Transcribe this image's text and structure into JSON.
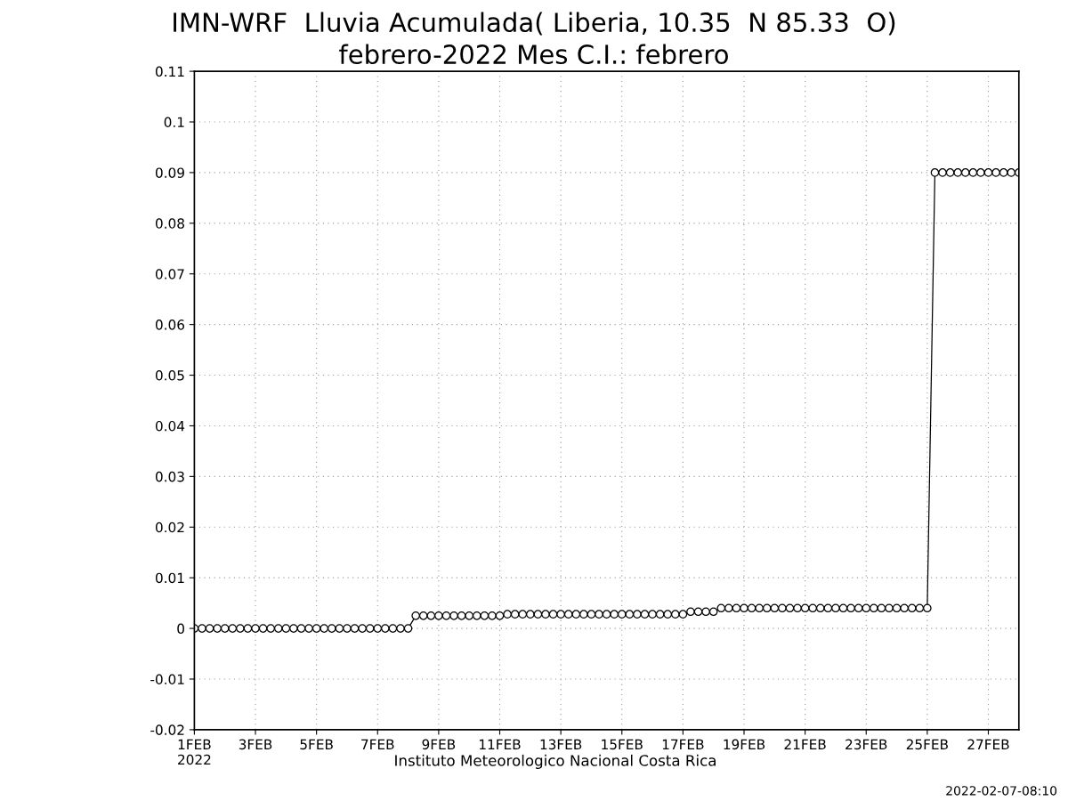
{
  "chart_data": {
    "type": "line",
    "title": "IMN-WRF  Lluvia Acumulada( Liberia, 10.35  N 85.33  O)",
    "subtitle": "febrero-2022 Mes C.I.: febrero",
    "annotations": [
      "Instituto Meteorologico Nacional Costa Rica",
      "2022-02-07-08:10"
    ],
    "x": [
      "2022-02-01T00:00",
      "2022-02-01T06:00",
      "2022-02-01T12:00",
      "2022-02-01T18:00",
      "2022-02-02T00:00",
      "2022-02-02T06:00",
      "2022-02-02T12:00",
      "2022-02-02T18:00",
      "2022-02-03T00:00",
      "2022-02-03T06:00",
      "2022-02-03T12:00",
      "2022-02-03T18:00",
      "2022-02-04T00:00",
      "2022-02-04T06:00",
      "2022-02-04T12:00",
      "2022-02-04T18:00",
      "2022-02-05T00:00",
      "2022-02-05T06:00",
      "2022-02-05T12:00",
      "2022-02-05T18:00",
      "2022-02-06T00:00",
      "2022-02-06T06:00",
      "2022-02-06T12:00",
      "2022-02-06T18:00",
      "2022-02-07T00:00",
      "2022-02-07T06:00",
      "2022-02-07T12:00",
      "2022-02-07T18:00",
      "2022-02-08T00:00",
      "2022-02-08T06:00",
      "2022-02-08T12:00",
      "2022-02-08T18:00",
      "2022-02-09T00:00",
      "2022-02-09T06:00",
      "2022-02-09T12:00",
      "2022-02-09T18:00",
      "2022-02-10T00:00",
      "2022-02-10T06:00",
      "2022-02-10T12:00",
      "2022-02-10T18:00",
      "2022-02-11T00:00",
      "2022-02-11T06:00",
      "2022-02-11T12:00",
      "2022-02-11T18:00",
      "2022-02-12T00:00",
      "2022-02-12T06:00",
      "2022-02-12T12:00",
      "2022-02-12T18:00",
      "2022-02-13T00:00",
      "2022-02-13T06:00",
      "2022-02-13T12:00",
      "2022-02-13T18:00",
      "2022-02-14T00:00",
      "2022-02-14T06:00",
      "2022-02-14T12:00",
      "2022-02-14T18:00",
      "2022-02-15T00:00",
      "2022-02-15T06:00",
      "2022-02-15T12:00",
      "2022-02-15T18:00",
      "2022-02-16T00:00",
      "2022-02-16T06:00",
      "2022-02-16T12:00",
      "2022-02-16T18:00",
      "2022-02-17T00:00",
      "2022-02-17T06:00",
      "2022-02-17T12:00",
      "2022-02-17T18:00",
      "2022-02-18T00:00",
      "2022-02-18T06:00",
      "2022-02-18T12:00",
      "2022-02-18T18:00",
      "2022-02-19T00:00",
      "2022-02-19T06:00",
      "2022-02-19T12:00",
      "2022-02-19T18:00",
      "2022-02-20T00:00",
      "2022-02-20T06:00",
      "2022-02-20T12:00",
      "2022-02-20T18:00",
      "2022-02-21T00:00",
      "2022-02-21T06:00",
      "2022-02-21T12:00",
      "2022-02-21T18:00",
      "2022-02-22T00:00",
      "2022-02-22T06:00",
      "2022-02-22T12:00",
      "2022-02-22T18:00",
      "2022-02-23T00:00",
      "2022-02-23T06:00",
      "2022-02-23T12:00",
      "2022-02-23T18:00",
      "2022-02-24T00:00",
      "2022-02-24T06:00",
      "2022-02-24T12:00",
      "2022-02-24T18:00",
      "2022-02-25T00:00",
      "2022-02-25T06:00",
      "2022-02-25T12:00",
      "2022-02-25T18:00",
      "2022-02-26T00:00",
      "2022-02-26T06:00",
      "2022-02-26T12:00",
      "2022-02-26T18:00",
      "2022-02-27T00:00",
      "2022-02-27T06:00",
      "2022-02-27T12:00",
      "2022-02-27T18:00",
      "2022-02-28T00:00"
    ],
    "series": [
      {
        "color": "#000000",
        "values": [
          0,
          0,
          0,
          0,
          0,
          0,
          0,
          0,
          0,
          0,
          0,
          0,
          0,
          0,
          0,
          0,
          0,
          0,
          0,
          0,
          0,
          0,
          0,
          0,
          0,
          0,
          0,
          0,
          0,
          0.0025,
          0.0025,
          0.0025,
          0.0025,
          0.0025,
          0.0025,
          0.0025,
          0.0025,
          0.0025,
          0.0025,
          0.0025,
          0.0025,
          0.0028,
          0.0028,
          0.0028,
          0.0028,
          0.0028,
          0.0028,
          0.0028,
          0.0028,
          0.0028,
          0.0028,
          0.0028,
          0.0028,
          0.0028,
          0.0028,
          0.0028,
          0.0028,
          0.0028,
          0.0028,
          0.0028,
          0.0028,
          0.0028,
          0.0028,
          0.0028,
          0.0028,
          0.0033,
          0.0033,
          0.0033,
          0.0033,
          0.004,
          0.004,
          0.004,
          0.004,
          0.004,
          0.004,
          0.004,
          0.004,
          0.004,
          0.004,
          0.004,
          0.004,
          0.004,
          0.004,
          0.004,
          0.004,
          0.004,
          0.004,
          0.004,
          0.004,
          0.004,
          0.004,
          0.004,
          0.004,
          0.004,
          0.004,
          0.004,
          0.004,
          0.09,
          0.09,
          0.09,
          0.09,
          0.09,
          0.09,
          0.09,
          0.09,
          0.09,
          0.09,
          0.09,
          0.09
        ]
      }
    ],
    "xlim": [
      "2022-02-01",
      "2022-02-28"
    ],
    "xticks": [
      {
        "value": "2022-02-01",
        "label": "1FEB\n2022"
      },
      {
        "value": "2022-02-03",
        "label": "3FEB"
      },
      {
        "value": "2022-02-05",
        "label": "5FEB"
      },
      {
        "value": "2022-02-07",
        "label": "7FEB"
      },
      {
        "value": "2022-02-09",
        "label": "9FEB"
      },
      {
        "value": "2022-02-11",
        "label": "11FEB"
      },
      {
        "value": "2022-02-13",
        "label": "13FEB"
      },
      {
        "value": "2022-02-15",
        "label": "15FEB"
      },
      {
        "value": "2022-02-17",
        "label": "17FEB"
      },
      {
        "value": "2022-02-19",
        "label": "19FEB"
      },
      {
        "value": "2022-02-21",
        "label": "21FEB"
      },
      {
        "value": "2022-02-23",
        "label": "23FEB"
      },
      {
        "value": "2022-02-25",
        "label": "25FEB"
      },
      {
        "value": "2022-02-27",
        "label": "27FEB"
      }
    ],
    "ylim": [
      -0.02,
      0.11
    ],
    "yticks": [
      -0.02,
      -0.01,
      0,
      0.01,
      0.02,
      0.03,
      0.04,
      0.05,
      0.06,
      0.07,
      0.08,
      0.09,
      0.1,
      0.11
    ],
    "grid": true,
    "legend": false,
    "marker": "circle",
    "line_style": "solid"
  }
}
